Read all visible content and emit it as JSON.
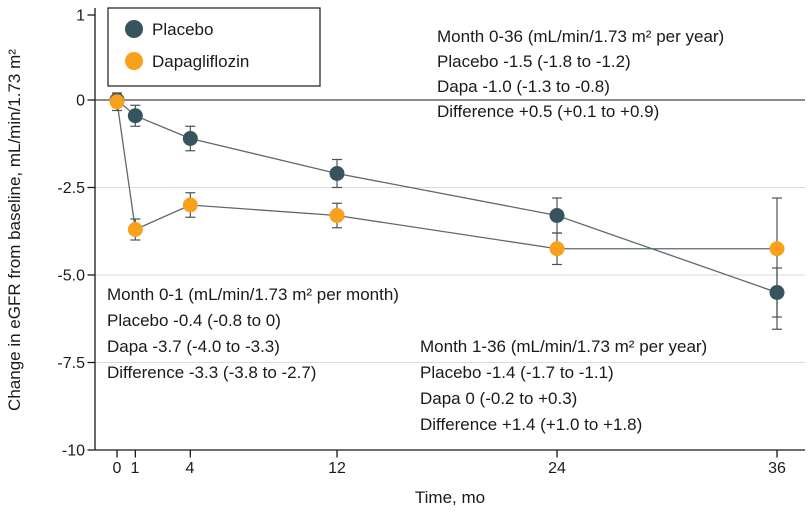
{
  "chart_data": {
    "type": "line",
    "title": "",
    "xlabel": "Time, mo",
    "ylabel": "Change in eGFR from baseline, mL/min/1.73 m²",
    "x": [
      0,
      1,
      4,
      12,
      24,
      36
    ],
    "xtick_labels": [
      "0",
      "1",
      "4",
      "12",
      "24",
      "36"
    ],
    "yticks": [
      1,
      0,
      -2.5,
      -5,
      -7.5,
      -10
    ],
    "ytick_labels": [
      "1",
      "0",
      "-2.5",
      "-5.0",
      "-7.5",
      "-10"
    ],
    "xlim": [
      0,
      36
    ],
    "ylim": [
      -10,
      1
    ],
    "grid": "horizontal",
    "gridlines_at": [
      -2.5,
      -5,
      -7.5
    ],
    "zero_line": true,
    "legend": {
      "position": "top-left"
    },
    "colors": {
      "axis": "#1a1a1a",
      "grid": "#d8dadb",
      "error_bar": "#49545a"
    },
    "series": [
      {
        "name": "Placebo",
        "color": "#36535e",
        "line_color": "#5b6a71",
        "values": [
          0,
          -0.45,
          -1.1,
          -2.1,
          -3.3,
          -5.5
        ],
        "err_low": [
          0.2,
          0.3,
          0.35,
          0.4,
          0.5,
          0.7
        ],
        "err_high": [
          0.2,
          0.3,
          0.35,
          0.4,
          0.5,
          0.7
        ]
      },
      {
        "name": "Dapagliflozin",
        "color": "#f9a11b",
        "line_color": "#5b6a71",
        "values": [
          -0.05,
          -3.7,
          -3.0,
          -3.3,
          -4.25,
          -4.25
        ],
        "err_low": [
          0.25,
          0.3,
          0.35,
          0.35,
          0.45,
          2.3
        ],
        "err_high": [
          0.25,
          0.3,
          0.35,
          0.35,
          0.45,
          1.45
        ]
      }
    ],
    "annotations": [
      {
        "id": "month-0-36",
        "lines": [
          "Month 0-36 (mL/min/1.73 m² per year)",
          "Placebo -1.5 (-1.8 to -1.2)",
          "Dapa -1.0 (-1.3 to -0.8)",
          "Difference +0.5 (+0.1 to +0.9)"
        ]
      },
      {
        "id": "month-0-1",
        "lines": [
          "Month 0-1 (mL/min/1.73 m² per month)",
          "Placebo -0.4 (-0.8 to 0)",
          "Dapa -3.7 (-4.0 to -3.3)",
          "Difference -3.3 (-3.8 to -2.7)"
        ]
      },
      {
        "id": "month-1-36",
        "lines": [
          "Month 1-36 (mL/min/1.73 m² per year)",
          "Placebo -1.4 (-1.7 to -1.1)",
          "Dapa 0 (-0.2 to +0.3)",
          "Difference +1.4 (+1.0 to +1.8)"
        ]
      }
    ]
  }
}
